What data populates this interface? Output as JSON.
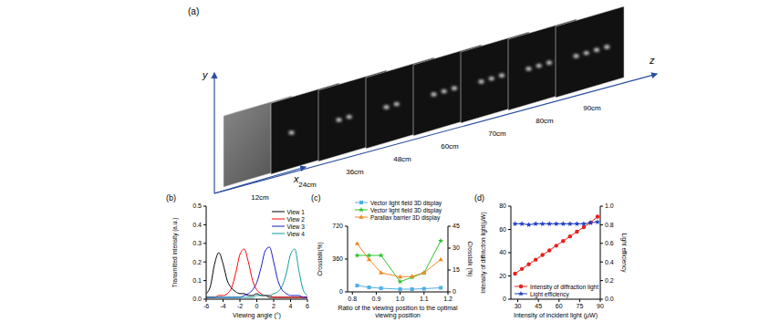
{
  "diagram": {
    "label": "(a)",
    "axis_labels": {
      "x": "x",
      "y": "y",
      "z": "z"
    },
    "planes": [
      "12cm",
      "24cm",
      "36cm",
      "48cm",
      "60cm",
      "70cm",
      "80cm",
      "90cm"
    ]
  },
  "chart_data": [
    {
      "type": "line",
      "title": "(b)",
      "x_label": "Viewing angle (°)",
      "y_label": "Transmitted intensity (a.u.)",
      "x": [
        -6,
        -5.5,
        -5,
        -4.5,
        -4,
        -3.5,
        -3,
        -2.5,
        -2,
        -1.5,
        -1,
        -0.5,
        0,
        0.5,
        1,
        1.5,
        2,
        2.5,
        3,
        3.5,
        4,
        4.5,
        5,
        5.5,
        6
      ],
      "series": [
        {
          "name": "View 1",
          "color": "#000000",
          "values": [
            0.03,
            0.07,
            0.19,
            0.25,
            0.19,
            0.1,
            0.06,
            0.04,
            0.03,
            0.03,
            0.02,
            0.02,
            0.03,
            0.02,
            0.02,
            0.01,
            0.01,
            0.01,
            0.01,
            0.01,
            0.01,
            0.01,
            0.01,
            0.01,
            0.01
          ]
        },
        {
          "name": "View 2",
          "color": "#ff0000",
          "values": [
            0.01,
            0.01,
            0.01,
            0.02,
            0.02,
            0.03,
            0.06,
            0.14,
            0.24,
            0.27,
            0.2,
            0.1,
            0.05,
            0.03,
            0.02,
            0.02,
            0.01,
            0.01,
            0.01,
            0.01,
            0.01,
            0.01,
            0.01,
            0.01,
            0.01
          ]
        },
        {
          "name": "View 3",
          "color": "#1a1acc",
          "values": [
            0.01,
            0.01,
            0.01,
            0.01,
            0.01,
            0.01,
            0.01,
            0.01,
            0.01,
            0.02,
            0.03,
            0.05,
            0.09,
            0.17,
            0.26,
            0.28,
            0.2,
            0.1,
            0.05,
            0.03,
            0.02,
            0.02,
            0.02,
            0.01,
            0.01
          ]
        },
        {
          "name": "View 4",
          "color": "#0f9a9a",
          "values": [
            0.01,
            0.01,
            0.01,
            0.01,
            0.01,
            0.01,
            0.01,
            0.01,
            0.01,
            0.01,
            0.01,
            0.01,
            0.02,
            0.02,
            0.02,
            0.02,
            0.03,
            0.04,
            0.07,
            0.14,
            0.24,
            0.27,
            0.15,
            0.05,
            0.02
          ]
        }
      ],
      "xlim": [
        -6,
        6
      ],
      "xticks": [
        -6,
        -4,
        -2,
        0,
        2,
        4,
        6
      ],
      "ylim": [
        0,
        0.5
      ],
      "yticks": [
        {
          "value": 0,
          "label": "0.0"
        },
        0.1,
        0.2,
        0.3,
        0.4,
        0.5
      ],
      "legend": "upper right"
    },
    {
      "type": "line",
      "title": "(c)",
      "x_label": "Ratio of the viewing position to the optimal viewing position",
      "y_label": "Crosstalk(%)",
      "y2_label": "Crosstalk (%)",
      "x": [
        0.82,
        0.87,
        0.92,
        1.0,
        1.05,
        1.1,
        1.17
      ],
      "series": [
        {
          "name": "Vector light field 3D display",
          "color": "#4fb0e6",
          "marker": "square",
          "values": [
            70,
            50,
            40,
            30,
            30,
            35,
            45
          ]
        },
        {
          "name": "Vector light field 3D display",
          "color": "#2ec42e",
          "marker": "star",
          "axis": "y2",
          "values": [
            25,
            25,
            25,
            7,
            10,
            13,
            35
          ]
        },
        {
          "name": "Parallax barrier 3D display",
          "color": "#f08a24",
          "marker": "triangle",
          "values": [
            530,
            355,
            210,
            165,
            170,
            210,
            355
          ]
        }
      ],
      "xlim": [
        0.78,
        1.2
      ],
      "xticks": [
        0.8,
        0.9,
        {
          "value": 1,
          "label": "1.0"
        },
        1.1,
        1.2
      ],
      "ylim": [
        0,
        720
      ],
      "yticks": [
        0,
        360,
        720
      ],
      "y2lim": [
        0,
        45
      ],
      "y2ticks": [
        0,
        15,
        30,
        45
      ],
      "legend": "upper center"
    },
    {
      "type": "line",
      "title": "(d)",
      "x_label": "Intensity of incident light (μW)",
      "y_label": "Intensity of diffraction light(μW)",
      "y2_label": "Light efficiency",
      "x": [
        28,
        33,
        38,
        43,
        48,
        53,
        58,
        63,
        68,
        73,
        78,
        83,
        88
      ],
      "series": [
        {
          "name": "Intensity of diffraction light",
          "color": "#e8201c",
          "marker": "circle",
          "values": [
            22,
            26,
            30,
            34,
            38,
            42,
            46,
            50,
            54,
            58,
            62,
            66,
            71
          ]
        },
        {
          "name": "Light efficiency",
          "color": "#2040c0",
          "marker": "star",
          "axis": "y2",
          "values": [
            0.81,
            0.81,
            0.8,
            0.81,
            0.81,
            0.81,
            0.81,
            0.81,
            0.81,
            0.81,
            0.81,
            0.82,
            0.83
          ]
        }
      ],
      "xlim": [
        25,
        90
      ],
      "xticks": [
        30,
        45,
        60,
        75,
        90
      ],
      "ylim": [
        0,
        80
      ],
      "yticks": [
        0,
        20,
        40,
        60,
        80
      ],
      "y2lim": [
        0,
        1
      ],
      "y2ticks": [
        {
          "value": 0,
          "label": "0.0"
        },
        0.2,
        0.4,
        0.6,
        0.8,
        {
          "value": 1,
          "label": "1.0"
        }
      ],
      "legend": "lower right"
    }
  ]
}
